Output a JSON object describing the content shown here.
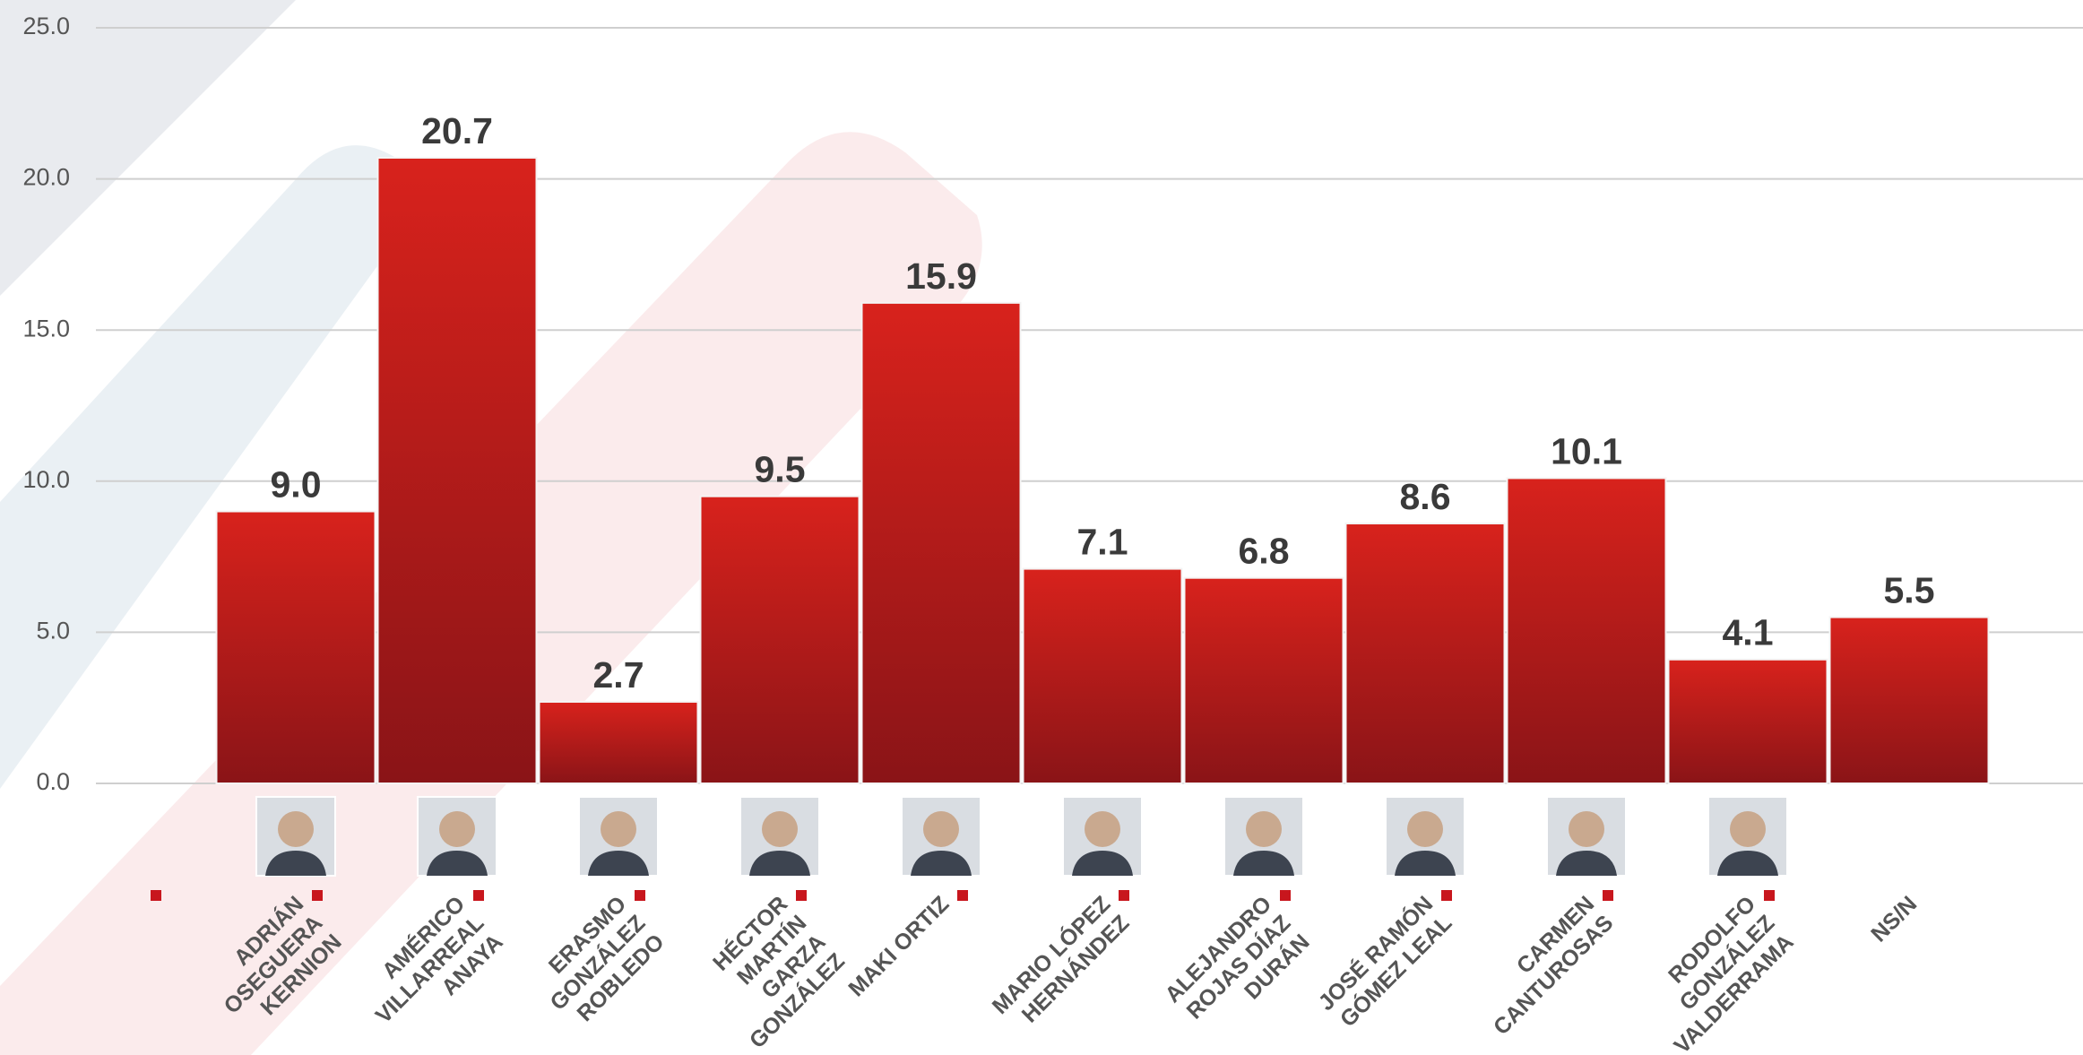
{
  "chart_data": {
    "type": "bar",
    "categories": [
      "ADRIÁN\nOSEGUERA\nKERNION",
      "AMÉRICO\nVILLARREAL\nANAYA",
      "ERASMO\nGONZÁLEZ\nROBLEDO",
      "HÉCTOR\nMARTÍN\nGARZA\nGONZÁLEZ",
      "MAKI ORTIZ",
      "MARIO LÓPEZ\nHERNÁNDEZ",
      "ALEJANDRO\nROJAS DÍAZ\nDURÁN",
      "JOSÉ RAMÓN\nGÓMEZ LEAL",
      "CARMEN\nCANTUROSAS",
      "RODOLFO\nGONZÁLEZ\nVALDERRAMA",
      "NS/N"
    ],
    "values": [
      9.0,
      20.7,
      2.7,
      9.5,
      15.9,
      7.1,
      6.8,
      8.6,
      10.1,
      4.1,
      5.5
    ],
    "value_labels": [
      "9.0",
      "20.7",
      "2.7",
      "9.5",
      "15.9",
      "7.1",
      "6.8",
      "8.6",
      "10.1",
      "4.1",
      "5.5"
    ],
    "color": "#d8221c",
    "ylim": [
      0,
      25
    ],
    "yticks": [
      {
        "value": 0,
        "label": "0.0"
      },
      {
        "value": 5,
        "label": "5.0"
      },
      {
        "value": 10,
        "label": "10.0"
      },
      {
        "value": 15,
        "label": "15.0"
      },
      {
        "value": 20,
        "label": "20.0"
      },
      {
        "value": 25,
        "label": "25.0"
      }
    ],
    "grid": true
  }
}
